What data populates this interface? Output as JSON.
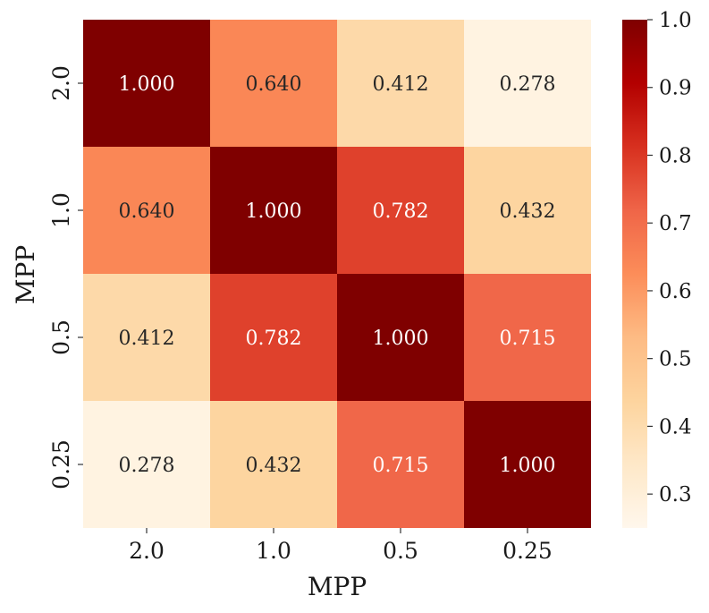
{
  "chart_data": {
    "type": "heatmap",
    "title": "",
    "xlabel": "MPP",
    "ylabel": "MPP",
    "x_categories": [
      "2.0",
      "1.0",
      "0.5",
      "0.25"
    ],
    "y_categories": [
      "2.0",
      "1.0",
      "0.5",
      "0.25"
    ],
    "values": [
      [
        1.0,
        0.64,
        0.412,
        0.278
      ],
      [
        0.64,
        1.0,
        0.782,
        0.432
      ],
      [
        0.412,
        0.782,
        1.0,
        0.715
      ],
      [
        0.278,
        0.432,
        0.715,
        1.0
      ]
    ],
    "value_labels": [
      [
        "1.000",
        "0.640",
        "0.412",
        "0.278"
      ],
      [
        "0.640",
        "1.000",
        "0.782",
        "0.432"
      ],
      [
        "0.412",
        "0.782",
        "1.000",
        "0.715"
      ],
      [
        "0.278",
        "0.432",
        "0.715",
        "1.000"
      ]
    ],
    "colormap": "OrRd",
    "vmin": 0.25,
    "vmax": 1.0,
    "colorbar": {
      "ticks": [
        0.3,
        0.4,
        0.5,
        0.6,
        0.7,
        0.8,
        0.9,
        1.0
      ],
      "tick_labels": [
        "0.3",
        "0.4",
        "0.5",
        "0.6",
        "0.7",
        "0.8",
        "0.9",
        "1.0"
      ],
      "position": "right"
    },
    "grid": false
  }
}
